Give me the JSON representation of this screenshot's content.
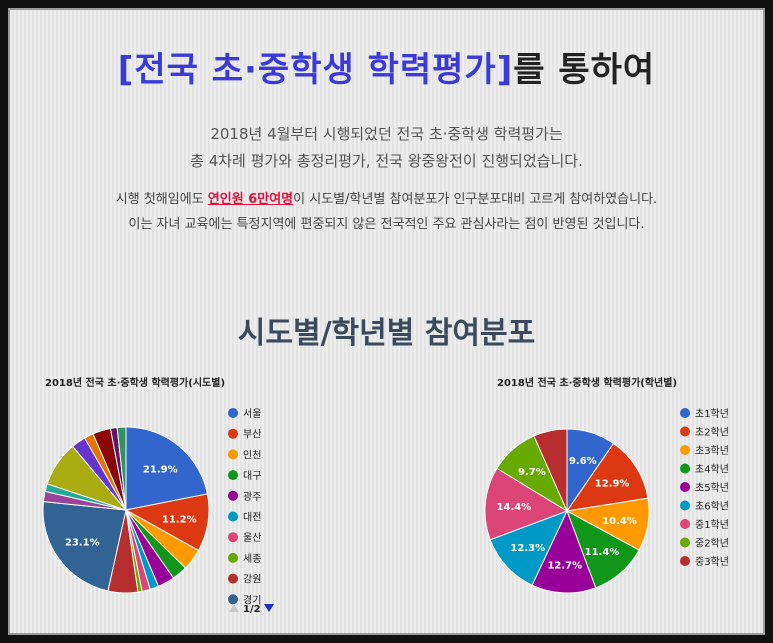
{
  "headline": {
    "highlight": "[전국 초·중학생 학력평가]",
    "rest": "를 통하여"
  },
  "intro": [
    "2018년 4월부터 시행되었던 전국 초·중학생 학력평가는",
    "총 4차례 평가와 총정리평가, 전국 왕중왕전이 진행되었습니다."
  ],
  "note": {
    "line1_before": "시행 첫해임에도 ",
    "line1_highlight": "연인원 6만여명",
    "line1_after": "이 시도별/학년별 참여분포가 인구분포대비 고르게 참여하였습니다.",
    "line2": "이는 자녀 교육에는 특정지역에 편중되지 않은 전국적인 주요 관심사라는 점이 반영된 것입니다."
  },
  "section_title": "시도별/학년별 참여분포",
  "pager": {
    "up_icon": "triangle-up-icon",
    "down_icon": "triangle-down-icon",
    "text": "1/2"
  },
  "chart_data": [
    {
      "type": "pie",
      "title": "2018년 전국 초·중학생 학력평가(시도별)",
      "legend_position": "right",
      "slices": [
        {
          "label": "서울",
          "value": 21.9,
          "color": "#3366cc",
          "show_label": true
        },
        {
          "label": "부산",
          "value": 11.2,
          "color": "#dc3912",
          "show_label": true
        },
        {
          "label": "인천",
          "value": 4.2,
          "color": "#ff9900",
          "show_label": false
        },
        {
          "label": "대구",
          "value": 3.0,
          "color": "#109618",
          "show_label": false
        },
        {
          "label": "광주",
          "value": 3.3,
          "color": "#990099",
          "show_label": false
        },
        {
          "label": "대전",
          "value": 1.7,
          "color": "#0099c6",
          "show_label": false
        },
        {
          "label": "울산",
          "value": 1.6,
          "color": "#dd4477",
          "show_label": false
        },
        {
          "label": "세종",
          "value": 0.8,
          "color": "#66aa00",
          "show_label": false
        },
        {
          "label": "강원",
          "value": 5.8,
          "color": "#b82e2e",
          "show_label": false
        },
        {
          "label": "경기",
          "value": 23.1,
          "color": "#316395",
          "show_label": true
        },
        {
          "label": "",
          "value": 2.0,
          "color": "#994499",
          "show_label": false
        },
        {
          "label": "",
          "value": 1.5,
          "color": "#22aa99",
          "show_label": false
        },
        {
          "label": "",
          "value": 8.8,
          "color": "#aaaa11",
          "show_label": false
        },
        {
          "label": "",
          "value": 2.8,
          "color": "#6633cc",
          "show_label": false
        },
        {
          "label": "",
          "value": 1.8,
          "color": "#e67300",
          "show_label": false
        },
        {
          "label": "",
          "value": 3.5,
          "color": "#8b0707",
          "show_label": false
        },
        {
          "label": "",
          "value": 1.3,
          "color": "#651067",
          "show_label": false
        },
        {
          "label": "",
          "value": 1.7,
          "color": "#329262",
          "show_label": false
        }
      ],
      "legend_count": 10
    },
    {
      "type": "pie",
      "title": "2018년 전국 초·중학생 학력평가(학년별)",
      "legend_position": "right",
      "slices": [
        {
          "label": "초1학년",
          "value": 9.6,
          "color": "#3366cc",
          "show_label": true
        },
        {
          "label": "초2학년",
          "value": 12.9,
          "color": "#dc3912",
          "show_label": true
        },
        {
          "label": "초3학년",
          "value": 10.4,
          "color": "#ff9900",
          "show_label": true
        },
        {
          "label": "초4학년",
          "value": 11.4,
          "color": "#109618",
          "show_label": true
        },
        {
          "label": "초5학년",
          "value": 12.7,
          "color": "#990099",
          "show_label": true
        },
        {
          "label": "초6학년",
          "value": 12.3,
          "color": "#0099c6",
          "show_label": true
        },
        {
          "label": "중1학년",
          "value": 14.4,
          "color": "#dd4477",
          "show_label": true
        },
        {
          "label": "중2학년",
          "value": 9.7,
          "color": "#66aa00",
          "show_label": true
        },
        {
          "label": "중3학년",
          "value": 6.6,
          "color": "#b82e2e",
          "show_label": false
        }
      ],
      "legend_count": 9
    }
  ]
}
